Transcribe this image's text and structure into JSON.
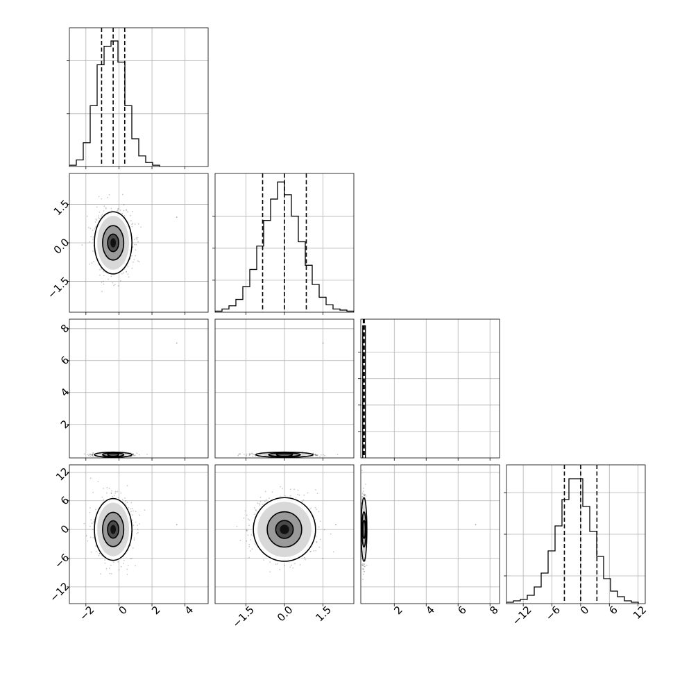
{
  "chart_data": {
    "type": "corner",
    "parameters": [
      {
        "ticks": [
          -2,
          0,
          2,
          4
        ],
        "tick_labels": [
          "−2",
          "0",
          "2",
          "4"
        ],
        "range": [
          -3.0,
          5.4
        ]
      },
      {
        "ticks": [
          -1.5,
          0.0,
          1.5
        ],
        "tick_labels": [
          "−1.5",
          "0.0",
          "1.5"
        ],
        "range": [
          -2.7,
          2.7
        ]
      },
      {
        "ticks": [
          2,
          4,
          6,
          8
        ],
        "tick_labels": [
          "2",
          "4",
          "6",
          "8"
        ],
        "range": [
          -0.1,
          8.6
        ]
      },
      {
        "ticks": [
          -12,
          -6,
          0,
          6,
          12
        ],
        "tick_labels": [
          "−12",
          "−6",
          "0",
          "6",
          "12"
        ],
        "range": [
          -15.5,
          13.5
        ]
      }
    ],
    "marginals": [
      {
        "bins": [
          -3.0,
          -2.58,
          -2.16,
          -1.74,
          -1.32,
          -0.9,
          -0.48,
          -0.06,
          0.36,
          0.78,
          1.2,
          1.62,
          2.04,
          2.46
        ],
        "counts": [
          1,
          5,
          18,
          46,
          77,
          91,
          95,
          79,
          46,
          21,
          8,
          3,
          1
        ],
        "quantiles": [
          -1.05,
          -0.35,
          0.35
        ],
        "yticks": [
          40,
          80
        ],
        "ymax": 105
      },
      {
        "bins": [
          -2.7,
          -2.43,
          -2.16,
          -1.89,
          -1.62,
          -1.35,
          -1.08,
          -0.81,
          -0.54,
          -0.27,
          0.0,
          0.27,
          0.54,
          0.81,
          1.08,
          1.35,
          1.62,
          1.89,
          2.16,
          2.43,
          2.7
        ],
        "counts": [
          1,
          3,
          6,
          12,
          24,
          40,
          62,
          86,
          106,
          122,
          110,
          90,
          66,
          44,
          26,
          14,
          7,
          3,
          2,
          1
        ],
        "quantiles": [
          -0.85,
          0.0,
          0.85
        ],
        "yticks": [
          30,
          60,
          90
        ],
        "ymax": 130
      },
      {
        "bins": [
          0.02,
          0.19
        ],
        "counts": [
          1
        ],
        "quantiles": [
          0.06,
          0.09,
          0.12
        ],
        "yticks": [
          0.2,
          0.4,
          0.6,
          0.8
        ],
        "ymax": 1.05
      },
      {
        "bins": [
          -15.5,
          -14.05,
          -12.6,
          -11.15,
          -9.7,
          -8.25,
          -6.8,
          -5.35,
          -3.9,
          -2.45,
          -1.0,
          0.45,
          1.9,
          3.35,
          4.8,
          6.25,
          7.7,
          9.15,
          10.6,
          12.05
        ],
        "counts": [
          1,
          2,
          3,
          6,
          12,
          22,
          38,
          56,
          75,
          90,
          90,
          70,
          52,
          34,
          18,
          9,
          5,
          2,
          1
        ],
        "quantiles": [
          -3.4,
          0.0,
          3.4
        ],
        "yticks": [
          20,
          50,
          80
        ],
        "ymax": 100
      }
    ],
    "joint": [
      {
        "x": 0,
        "y": 1,
        "center": [
          -0.35,
          0.0
        ],
        "sigma": [
          0.55,
          0.6
        ],
        "outlier": [
          3.5,
          1.0
        ]
      },
      {
        "x": 0,
        "y": 2,
        "center": [
          -0.35,
          0.1
        ],
        "sigma": [
          0.55,
          0.05
        ],
        "outlier": [
          3.5,
          7.1
        ]
      },
      {
        "x": 1,
        "y": 2,
        "center": [
          0.0,
          0.1
        ],
        "sigma": [
          0.55,
          0.05
        ],
        "outlier": [
          1.5,
          7.1
        ]
      },
      {
        "x": 0,
        "y": 3,
        "center": [
          -0.35,
          0.0
        ],
        "sigma": [
          0.55,
          3.2
        ],
        "outlier": [
          3.5,
          1.0
        ]
      },
      {
        "x": 1,
        "y": 3,
        "center": [
          0.0,
          0.0
        ],
        "sigma": [
          0.6,
          3.3
        ],
        "outlier": [
          2.0,
          1.0
        ]
      },
      {
        "x": 2,
        "y": 3,
        "center": [
          0.1,
          0.0
        ],
        "sigma": [
          0.06,
          3.3
        ],
        "outlier": [
          7.1,
          1.0
        ]
      }
    ],
    "grid": true,
    "quantile_style": "dashed",
    "contour_levels": [
      0.39,
      0.86,
      0.99
    ]
  }
}
